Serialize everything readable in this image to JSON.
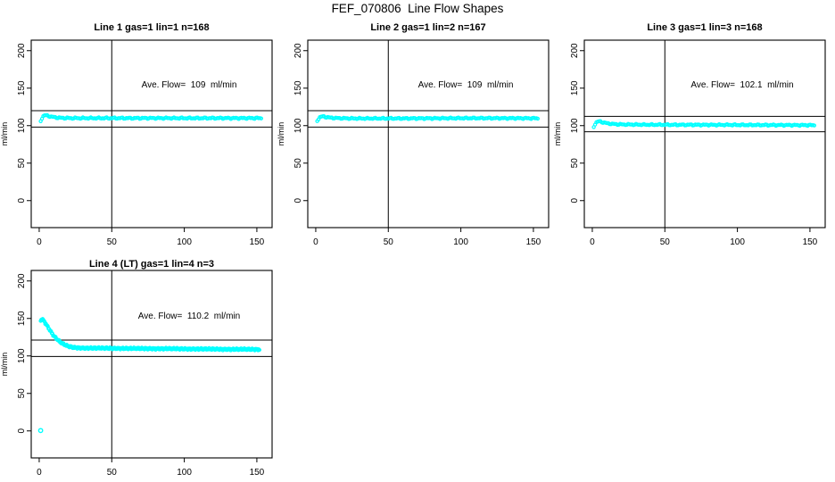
{
  "title": "FEF_070806  Line Flow Shapes",
  "colors": {
    "series": "#00ffff",
    "axis": "#000000",
    "background": "#ffffff"
  },
  "chart_data": [
    {
      "type": "scatter",
      "title": "Line 1 gas=1 lin=1 n=168",
      "annotation": "Ave. Flow=  109  ml/min",
      "avg_flow_ml_min": 109,
      "n": 168,
      "ylabel": "ml/min",
      "x_ticks": [
        0,
        50,
        100,
        150
      ],
      "y_ticks": [
        0,
        50,
        100,
        150,
        200
      ],
      "xlim": [
        -5.5,
        160.5
      ],
      "ylim": [
        -36,
        214
      ],
      "vline_x": 50,
      "hlines": [
        98.1,
        119.9
      ],
      "series_color": "#00ffff",
      "keypoints": [
        [
          1,
          106.5
        ],
        [
          2,
          110.5
        ],
        [
          3,
          113
        ],
        [
          4,
          113.8
        ],
        [
          6,
          113.2
        ],
        [
          8,
          112
        ],
        [
          11,
          111
        ],
        [
          15,
          110.3
        ],
        [
          22,
          110
        ],
        [
          50,
          110
        ],
        [
          100,
          110
        ],
        [
          151,
          110
        ]
      ],
      "outliers": [],
      "band_jitter": 1.1,
      "sample_step": 0.91,
      "x_end": 153
    },
    {
      "type": "scatter",
      "title": "Line 2 gas=1 lin=2 n=167",
      "annotation": "Ave. Flow=  109  ml/min",
      "avg_flow_ml_min": 109,
      "n": 167,
      "ylabel": "ml/min",
      "x_ticks": [
        0,
        50,
        100,
        150
      ],
      "y_ticks": [
        0,
        50,
        100,
        150,
        200
      ],
      "xlim": [
        -5.5,
        160.5
      ],
      "ylim": [
        -36,
        214
      ],
      "vline_x": 50,
      "hlines": [
        98.1,
        119.9
      ],
      "series_color": "#00ffff",
      "keypoints": [
        [
          1,
          106.5
        ],
        [
          2,
          109.5
        ],
        [
          3,
          111.5
        ],
        [
          5,
          112.3
        ],
        [
          7,
          111.5
        ],
        [
          10,
          110.6
        ],
        [
          15,
          110
        ],
        [
          25,
          109.6
        ],
        [
          60,
          109.6
        ],
        [
          110,
          110
        ],
        [
          151,
          109.8
        ]
      ],
      "outliers": [],
      "band_jitter": 1.0,
      "sample_step": 0.91,
      "x_end": 153
    },
    {
      "type": "scatter",
      "title": "Line 3 gas=1 lin=3 n=168",
      "annotation": "Ave. Flow=  102.1  ml/min",
      "avg_flow_ml_min": 102.1,
      "n": 168,
      "ylabel": "ml/min",
      "x_ticks": [
        0,
        50,
        100,
        150
      ],
      "y_ticks": [
        0,
        50,
        100,
        150,
        200
      ],
      "xlim": [
        -5.5,
        160.5
      ],
      "ylim": [
        -36,
        214
      ],
      "vline_x": 50,
      "hlines": [
        91.9,
        112.3
      ],
      "series_color": "#00ffff",
      "keypoints": [
        [
          1,
          98.5
        ],
        [
          2,
          102.5
        ],
        [
          3,
          104.8
        ],
        [
          5,
          105.8
        ],
        [
          7,
          104.6
        ],
        [
          10,
          103.2
        ],
        [
          14,
          102.2
        ],
        [
          20,
          101.6
        ],
        [
          40,
          101.2
        ],
        [
          90,
          101
        ],
        [
          151,
          100.6
        ]
      ],
      "outliers": [],
      "band_jitter": 1.0,
      "sample_step": 0.91,
      "x_end": 153
    },
    {
      "type": "scatter",
      "title": "Line 4 (LT) gas=1 lin=4 n=3",
      "annotation": "Ave. Flow=  110.2  ml/min",
      "avg_flow_ml_min": 110.2,
      "n": 3,
      "ylabel": "ml/min",
      "x_ticks": [
        0,
        50,
        100,
        150
      ],
      "y_ticks": [
        0,
        50,
        100,
        150,
        200
      ],
      "xlim": [
        -5.5,
        160.5
      ],
      "ylim": [
        -36,
        214
      ],
      "vline_x": 50,
      "hlines": [
        99.2,
        121.2
      ],
      "series_color": "#00ffff",
      "keypoints": [
        [
          1,
          147.5
        ],
        [
          2,
          149
        ],
        [
          3,
          147.5
        ],
        [
          4,
          144.5
        ],
        [
          5,
          141.5
        ],
        [
          6,
          138.5
        ],
        [
          7,
          135.5
        ],
        [
          8,
          132.5
        ],
        [
          9,
          129.5
        ],
        [
          10,
          127
        ],
        [
          11,
          124.8
        ],
        [
          12,
          122.8
        ],
        [
          13,
          121
        ],
        [
          14,
          119.3
        ],
        [
          15,
          117.8
        ],
        [
          16,
          116.5
        ],
        [
          17,
          115.4
        ],
        [
          18,
          114.4
        ],
        [
          19,
          113.6
        ],
        [
          20,
          112.9
        ],
        [
          22,
          111.9
        ],
        [
          24,
          111.3
        ],
        [
          27,
          110.8
        ],
        [
          30,
          110.6
        ],
        [
          35,
          110.4
        ],
        [
          45,
          110.3
        ],
        [
          60,
          110
        ],
        [
          80,
          109.7
        ],
        [
          100,
          109.4
        ],
        [
          125,
          109
        ],
        [
          151,
          108.7
        ]
      ],
      "outliers": [
        [
          1,
          0.5
        ]
      ],
      "band_jitter": 1.4,
      "sample_step": 0.45,
      "x_end": 152
    }
  ]
}
